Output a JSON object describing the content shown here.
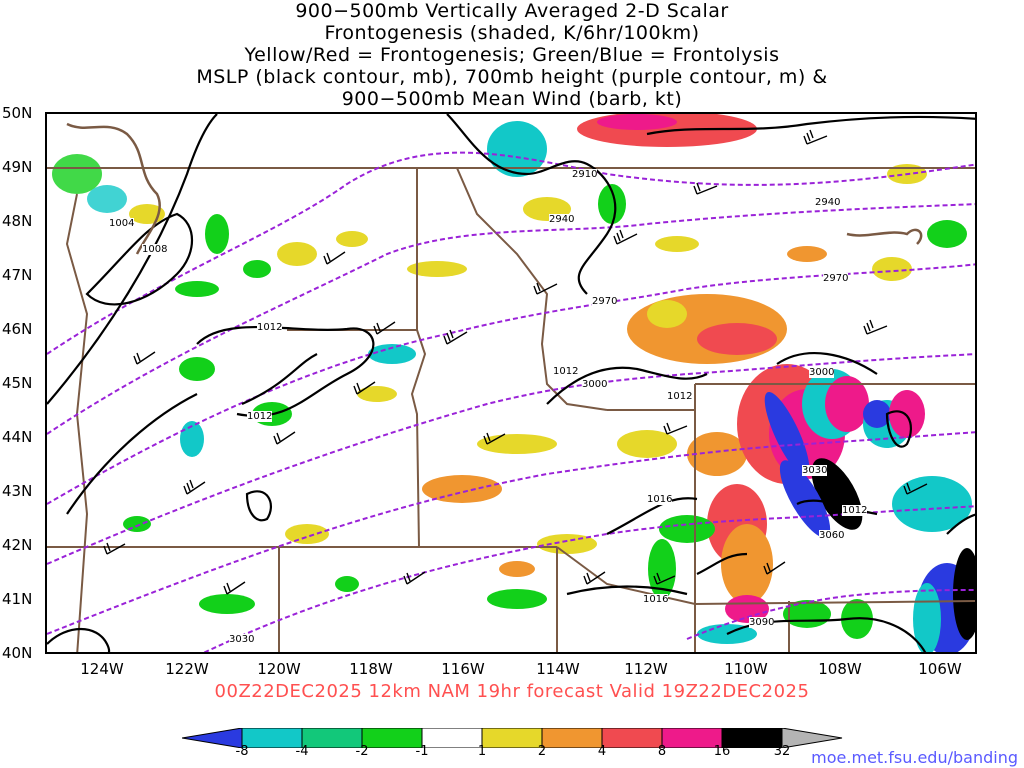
{
  "title_lines": [
    "900−500mb Vertically Averaged 2-D Scalar",
    "Frontogenesis (shaded, K/6hr/100km)",
    "Yellow/Red = Frontogenesis;  Green/Blue = Frontolysis",
    "MSLP (black contour, mb), 700mb height (purple contour, m) &",
    "900−500mb Mean Wind (barb, kt)"
  ],
  "lat_labels": [
    "50N",
    "49N",
    "48N",
    "47N",
    "46N",
    "45N",
    "44N",
    "43N",
    "42N",
    "41N",
    "40N"
  ],
  "lon_labels": [
    "124W",
    "122W",
    "120W",
    "118W",
    "116W",
    "114W",
    "112W",
    "110W",
    "108W",
    "106W"
  ],
  "footer": "00Z22DEC2025 12km NAM 19hr forecast Valid 19Z22DEC2025",
  "site": "moe.met.fsu.edu/banding",
  "colorbar": {
    "labels": [
      "-8",
      "-4",
      "-2",
      "-1",
      "1",
      "2",
      "4",
      "8",
      "16",
      "32"
    ],
    "colors": [
      "#2a3ae0",
      "#12c8c8",
      "#12c87a",
      "#12d01a",
      "#ffffff",
      "#e6d82a",
      "#f09630",
      "#f04a50",
      "#ee1a8a",
      "#000000",
      "#b4b4b4"
    ]
  },
  "contours": {
    "mslp_labels": [
      "1004",
      "1008",
      "1012",
      "1012",
      "1012",
      "1012",
      "1016",
      "1016",
      "1012"
    ],
    "height_labels": [
      "2910",
      "2940",
      "2940",
      "2970",
      "2970",
      "3000",
      "3000",
      "3030",
      "3060",
      "3090",
      "3030"
    ]
  }
}
